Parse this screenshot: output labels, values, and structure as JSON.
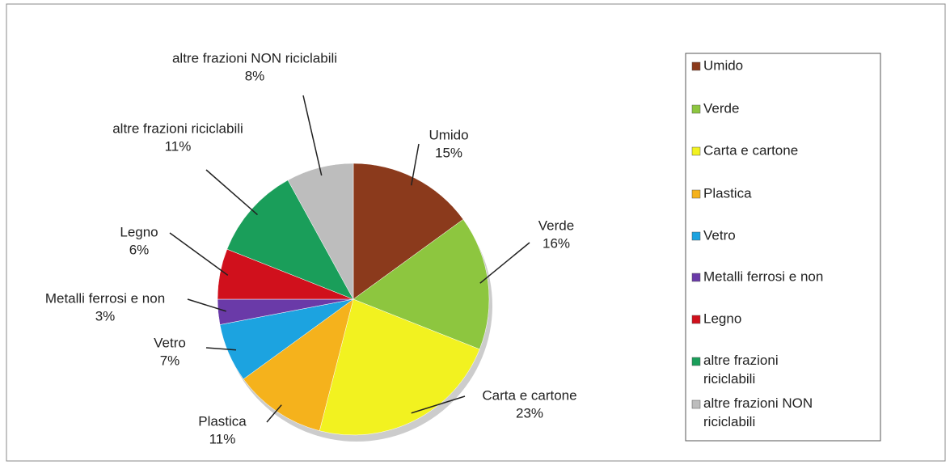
{
  "chart_data": {
    "type": "pie",
    "categories": [
      "Umido",
      "Verde",
      "Carta e cartone",
      "Plastica",
      "Vetro",
      "Metalli ferrosi e non",
      "Legno",
      "altre frazioni riciclabili",
      "altre frazioni NON riciclabili"
    ],
    "values": [
      15,
      16,
      23,
      11,
      7,
      3,
      6,
      11,
      8
    ],
    "value_labels": [
      "15%",
      "16%",
      "23%",
      "11%",
      "7%",
      "3%",
      "6%",
      "11%",
      "8%"
    ],
    "colors": [
      "#8b3a1c",
      "#8dc63f",
      "#f2f220",
      "#f5b21c",
      "#1ca3e0",
      "#6a3aa8",
      "#d0101c",
      "#1a9e5a",
      "#bdbdbd"
    ],
    "legend": "right"
  }
}
